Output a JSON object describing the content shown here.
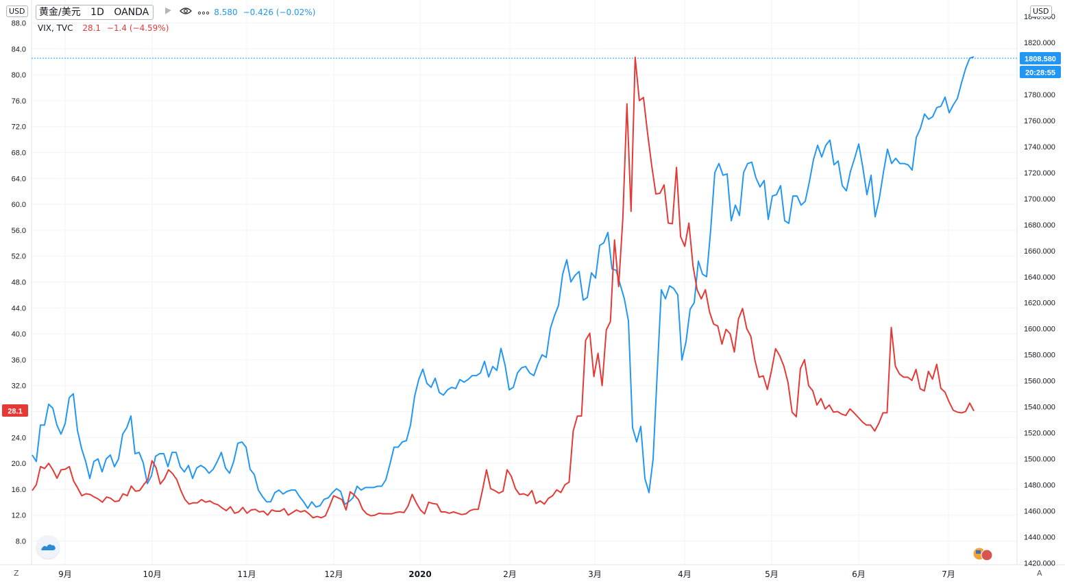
{
  "legend": {
    "symbol": "黄金/美元",
    "interval": "1D",
    "exchange": "OANDA",
    "main_value": "8.580",
    "main_change": "−0.426 (−0.02%)",
    "compare_symbol": "VIX, TVC",
    "compare_value": "28.1",
    "compare_change": "−1.4 (−4.59%)"
  },
  "left_currency": "USD",
  "right_currency": "USD",
  "left_price_tag": "28.1",
  "right_price_tag": "1808.580",
  "right_time_tag": "20:28:55",
  "corner_left": "Z",
  "corner_right": "A",
  "colors": {
    "gold": "#2196f3",
    "vix": "#e53935",
    "grid": "#f0f3fa",
    "text": "#131722"
  },
  "icons": [
    "flag-icon",
    "eye-icon",
    "more-icon",
    "tradingview-logo-icon",
    "us-flag-icon"
  ],
  "chart_data": {
    "type": "line",
    "x_ticks": [
      "9月",
      "10月",
      "11月",
      "12月",
      "2020",
      "2月",
      "3月",
      "4月",
      "5月",
      "6月",
      "7月"
    ],
    "left_axis": {
      "ylim": [
        4.0,
        88.0
      ],
      "ticks": [
        8.0,
        12.0,
        16.0,
        20.0,
        24.0,
        28.0,
        32.0,
        36.0,
        40.0,
        44.0,
        48.0,
        52.0,
        56.0,
        60.0,
        64.0,
        68.0,
        72.0,
        76.0,
        80.0,
        84.0,
        88.0
      ]
    },
    "right_axis": {
      "ylim": [
        1420.0,
        1840.0
      ],
      "ticks": [
        1420.0,
        1440.0,
        1460.0,
        1480.0,
        1500.0,
        1520.0,
        1540.0,
        1560.0,
        1580.0,
        1600.0,
        1620.0,
        1640.0,
        1660.0,
        1680.0,
        1700.0,
        1720.0,
        1740.0,
        1760.0,
        1780.0,
        1800.0,
        1820.0,
        1840.0
      ]
    },
    "series": [
      {
        "name": "黄金/美元",
        "axis": "right",
        "color": "#2196f3",
        "values": [
          1503,
          1498,
          1526,
          1526,
          1542,
          1539,
          1526,
          1519,
          1527,
          1547,
          1550,
          1522,
          1508,
          1498,
          1485,
          1498,
          1500,
          1490,
          1500,
          1503,
          1494,
          1500,
          1519,
          1524,
          1533,
          1504,
          1505,
          1497,
          1481,
          1487,
          1502,
          1504,
          1504,
          1494,
          1505,
          1505,
          1494,
          1490,
          1495,
          1485,
          1493,
          1495,
          1493,
          1489,
          1492,
          1498,
          1505,
          1493,
          1489,
          1498,
          1512,
          1513,
          1509,
          1492,
          1488,
          1476,
          1471,
          1467,
          1467,
          1474,
          1476,
          1473,
          1475,
          1476,
          1476,
          1471,
          1467,
          1462,
          1467,
          1463,
          1464,
          1469,
          1470,
          1474,
          1477,
          1475,
          1465,
          1467,
          1470,
          1479,
          1476,
          1478,
          1478,
          1478,
          1479,
          1479,
          1484,
          1496,
          1509,
          1509,
          1513,
          1514,
          1526,
          1548,
          1561,
          1569,
          1558,
          1555,
          1562,
          1551,
          1549,
          1553,
          1555,
          1554,
          1561,
          1559,
          1561,
          1564,
          1564,
          1566,
          1575,
          1563,
          1571,
          1568,
          1585,
          1572,
          1553,
          1555,
          1566,
          1570,
          1571,
          1566,
          1564,
          1573,
          1580,
          1578,
          1600,
          1610,
          1618,
          1642,
          1653,
          1636,
          1641,
          1644,
          1622,
          1624,
          1643,
          1639,
          1664,
          1666,
          1674,
          1646,
          1645,
          1634,
          1623,
          1606,
          1524,
          1513,
          1525,
          1485,
          1474,
          1500,
          1566,
          1630,
          1623,
          1633,
          1631,
          1626,
          1576,
          1590,
          1615,
          1620,
          1652,
          1642,
          1640,
          1676,
          1720,
          1727,
          1718,
          1719,
          1683,
          1695,
          1687,
          1720,
          1727,
          1728,
          1716,
          1709,
          1714,
          1684,
          1702,
          1703,
          1710,
          1683,
          1681,
          1702,
          1702,
          1695,
          1698,
          1713,
          1730,
          1741,
          1732,
          1741,
          1745,
          1726,
          1729,
          1710,
          1706,
          1721,
          1731,
          1742,
          1724,
          1703,
          1718,
          1686,
          1700,
          1720,
          1738,
          1727,
          1731,
          1727,
          1727,
          1726,
          1722,
          1747,
          1754,
          1765,
          1761,
          1763,
          1770,
          1771,
          1778,
          1766,
          1772,
          1777,
          1789,
          1800,
          1808,
          1809
        ]
      },
      {
        "name": "VIX, TVC",
        "axis": "left",
        "color": "#e53935",
        "values": [
          15.8,
          16.7,
          19.5,
          19.2,
          20.0,
          19.0,
          17.7,
          19.0,
          19.1,
          19.5,
          17.3,
          16.2,
          15.0,
          15.3,
          15.2,
          14.8,
          14.5,
          14.0,
          14.8,
          14.6,
          14.1,
          14.2,
          15.3,
          15.0,
          16.5,
          15.7,
          15.8,
          16.7,
          17.5,
          20.4,
          19.3,
          16.8,
          17.6,
          19.0,
          18.4,
          17.5,
          15.8,
          14.4,
          13.7,
          13.9,
          13.9,
          14.4,
          14.0,
          14.2,
          13.8,
          13.6,
          13.1,
          12.7,
          13.3,
          12.3,
          12.5,
          13.2,
          12.3,
          12.8,
          12.9,
          12.5,
          12.6,
          12.0,
          12.8,
          12.6,
          12.6,
          13.0,
          12.0,
          12.4,
          12.8,
          12.5,
          12.7,
          12.2,
          11.6,
          11.8,
          11.6,
          11.9,
          13.4,
          15.0,
          14.7,
          14.4,
          12.8,
          15.6,
          15.1,
          14.4,
          12.9,
          12.2,
          11.9,
          12.0,
          12.3,
          12.2,
          12.2,
          12.2,
          12.4,
          12.5,
          12.4,
          13.4,
          15.2,
          13.9,
          12.8,
          12.2,
          14.0,
          13.8,
          13.7,
          12.5,
          12.5,
          12.3,
          12.5,
          12.3,
          12.1,
          12.2,
          12.7,
          12.9,
          12.9,
          15.8,
          19.0,
          16.1,
          15.8,
          15.4,
          15.7,
          19.0,
          18.0,
          16.1,
          15.2,
          15.3,
          15.0,
          15.8,
          13.8,
          14.2,
          13.7,
          14.6,
          15.0,
          15.9,
          15.5,
          16.7,
          17.1,
          25.0,
          27.3,
          27.3,
          39.0,
          40.1,
          33.4,
          37.0,
          32.0,
          40.6,
          41.9,
          54.5,
          47.3,
          57.8,
          75.5,
          58.9,
          82.7,
          76.0,
          76.5,
          71.0,
          66.0,
          61.6,
          61.7,
          63.0,
          57.1,
          57.0,
          65.7,
          55.0,
          53.5,
          57.1,
          50.5,
          46.8,
          45.4,
          46.8,
          43.4,
          41.5,
          41.2,
          38.4,
          40.7,
          40.0,
          37.2,
          42.3,
          43.9,
          40.8,
          39.6,
          35.9,
          33.3,
          33.5,
          31.4,
          34.3,
          37.7,
          36.6,
          35.0,
          32.5,
          27.9,
          27.2,
          34.6,
          36.0,
          32.0,
          31.2,
          29.0,
          30.0,
          28.4,
          29.0,
          27.9,
          28.0,
          27.6,
          27.4,
          28.4,
          27.8,
          27.1,
          26.4,
          25.9,
          25.9,
          25.0,
          26.2,
          27.8,
          27.8,
          41.0,
          35.0,
          33.8,
          33.3,
          33.3,
          32.8,
          34.5,
          31.5,
          31.2,
          34.2,
          33.0,
          35.3,
          31.6,
          31.0,
          29.5,
          28.2,
          27.9,
          27.8,
          28.0,
          29.3,
          28.1
        ]
      }
    ]
  }
}
